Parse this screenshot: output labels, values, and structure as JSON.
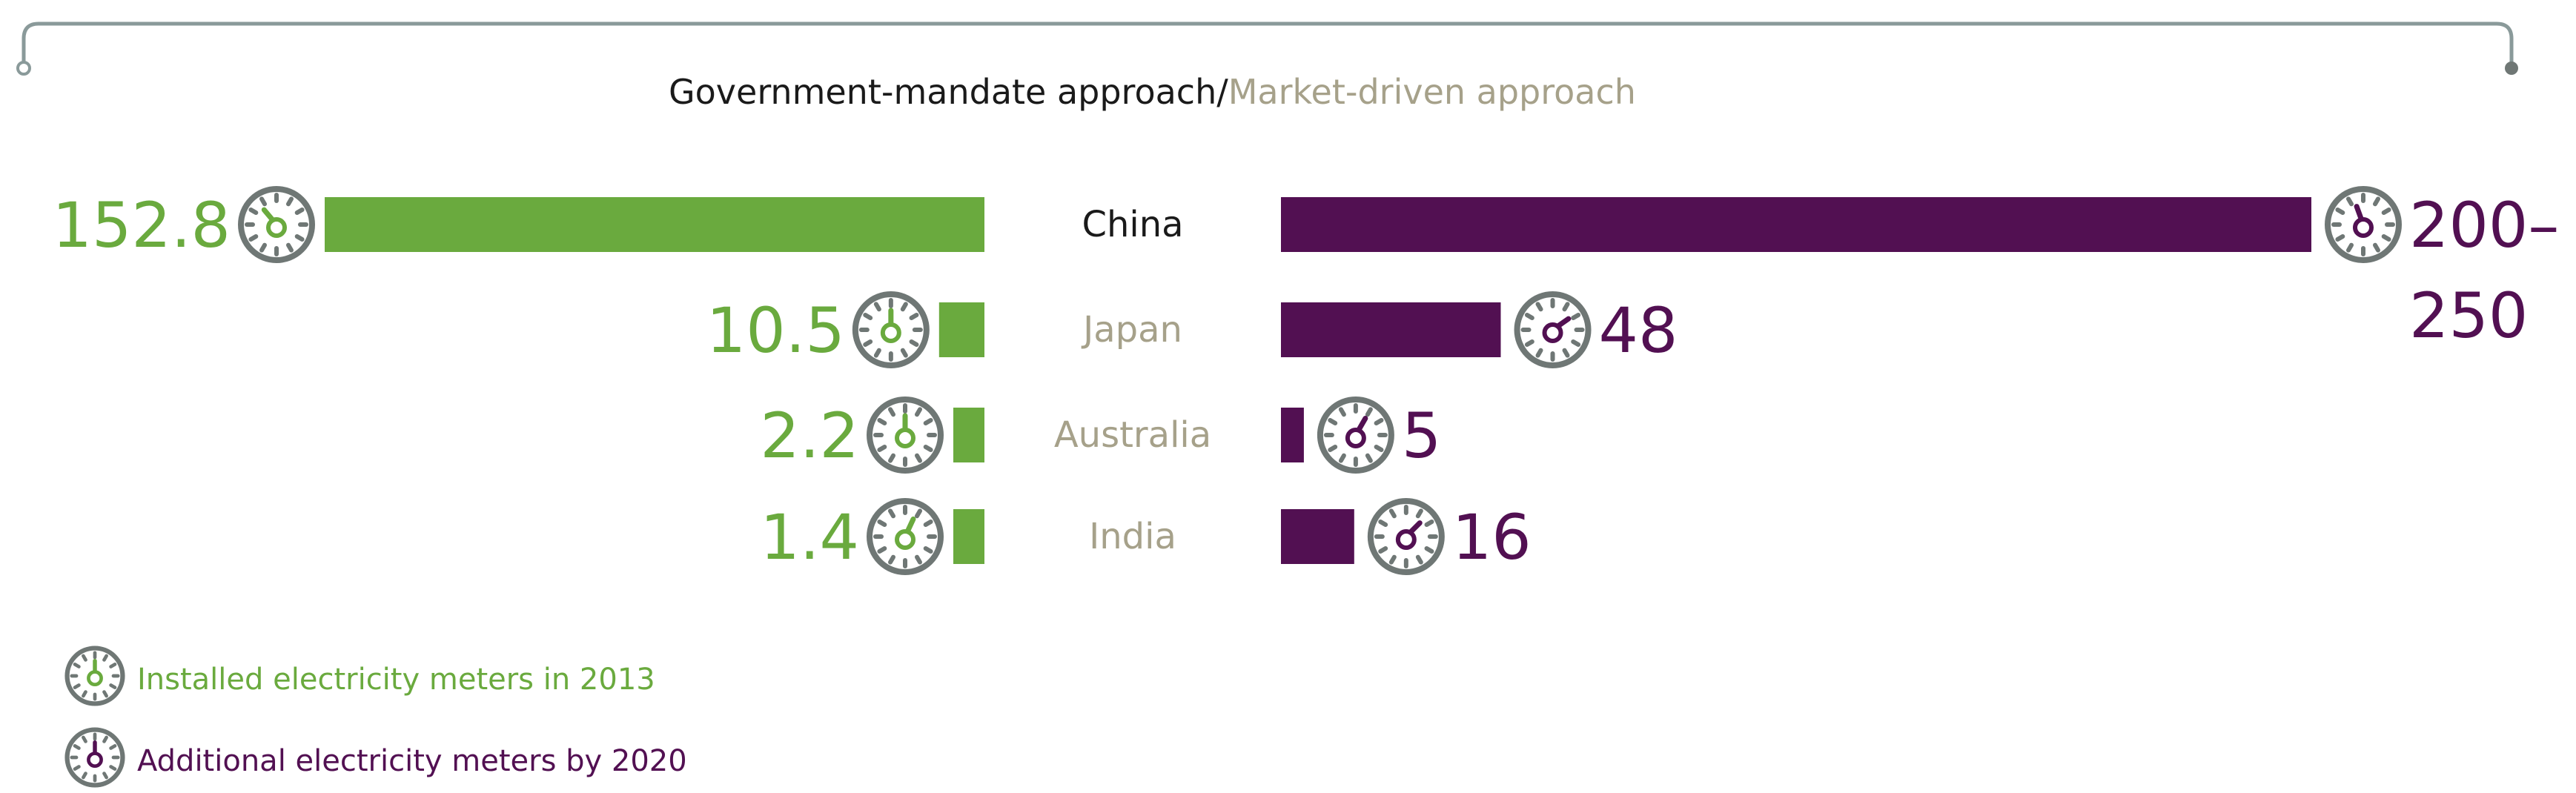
{
  "header": {
    "government_label": "Government-mandate approach",
    "separator": "/",
    "market_label": "Market-driven approach"
  },
  "colors": {
    "installed": "#6aaa3e",
    "additional": "#521052",
    "market_text": "#a6a18a",
    "dark_text": "#1a1a1a",
    "bracket": "#8a9a9a",
    "icon_gray": "#6f7775"
  },
  "chart_data": {
    "type": "bar",
    "categories": [
      "China",
      "Japan",
      "Australia",
      "India"
    ],
    "category_approach": [
      "government",
      "market",
      "market",
      "market"
    ],
    "series": [
      {
        "name": "Installed electricity meters in 2013",
        "values": [
          152.8,
          10.5,
          2.2,
          1.4
        ],
        "labels": [
          "152.8",
          "10.5",
          "2.2",
          "1.4"
        ]
      },
      {
        "name": "Additional electricity meters by 2020",
        "values": [
          225,
          48,
          5,
          16
        ],
        "labels": [
          [
            "200–",
            "250"
          ],
          [
            "48"
          ],
          [
            "5"
          ],
          [
            "16"
          ]
        ]
      }
    ]
  },
  "legend": {
    "installed_label": "Installed electricity meters in 2013",
    "additional_label": "Additional electricity meters by 2020"
  }
}
